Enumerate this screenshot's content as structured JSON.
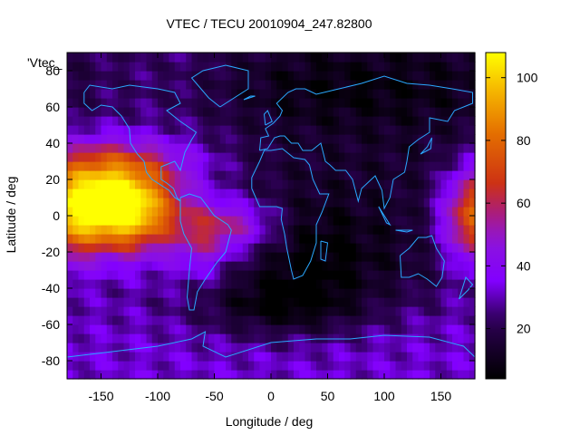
{
  "chart_data": {
    "type": "heatmap",
    "title": "VTEC / TECU 20010904_247.82800",
    "xlabel": "Longitude / deg",
    "ylabel": "Latitude / deg",
    "xlim": [
      -180,
      180
    ],
    "ylim": [
      -90,
      90
    ],
    "xticks": [
      -150,
      -100,
      -50,
      0,
      50,
      100,
      150
    ],
    "yticks": [
      80,
      60,
      40,
      20,
      0,
      -20,
      -40,
      -60,
      -80
    ],
    "colorbar": {
      "range": [
        4,
        108
      ],
      "ticks": [
        20,
        40,
        60,
        80,
        100
      ]
    },
    "key_label": "'Vtec_",
    "grid": false,
    "features": [
      {
        "name": "Pacific crest (east)",
        "lon": -125,
        "lat": 4,
        "peak": 104
      },
      {
        "name": "Pacific crest (west)",
        "lon": 178,
        "lat": 0,
        "peak": 98
      },
      {
        "name": "Atlantic/Africa band",
        "lon": -30,
        "lat": -5,
        "peak": 62
      },
      {
        "name": "South Atlantic trough",
        "lon": 0,
        "lat": -50,
        "peak": 6
      }
    ]
  }
}
